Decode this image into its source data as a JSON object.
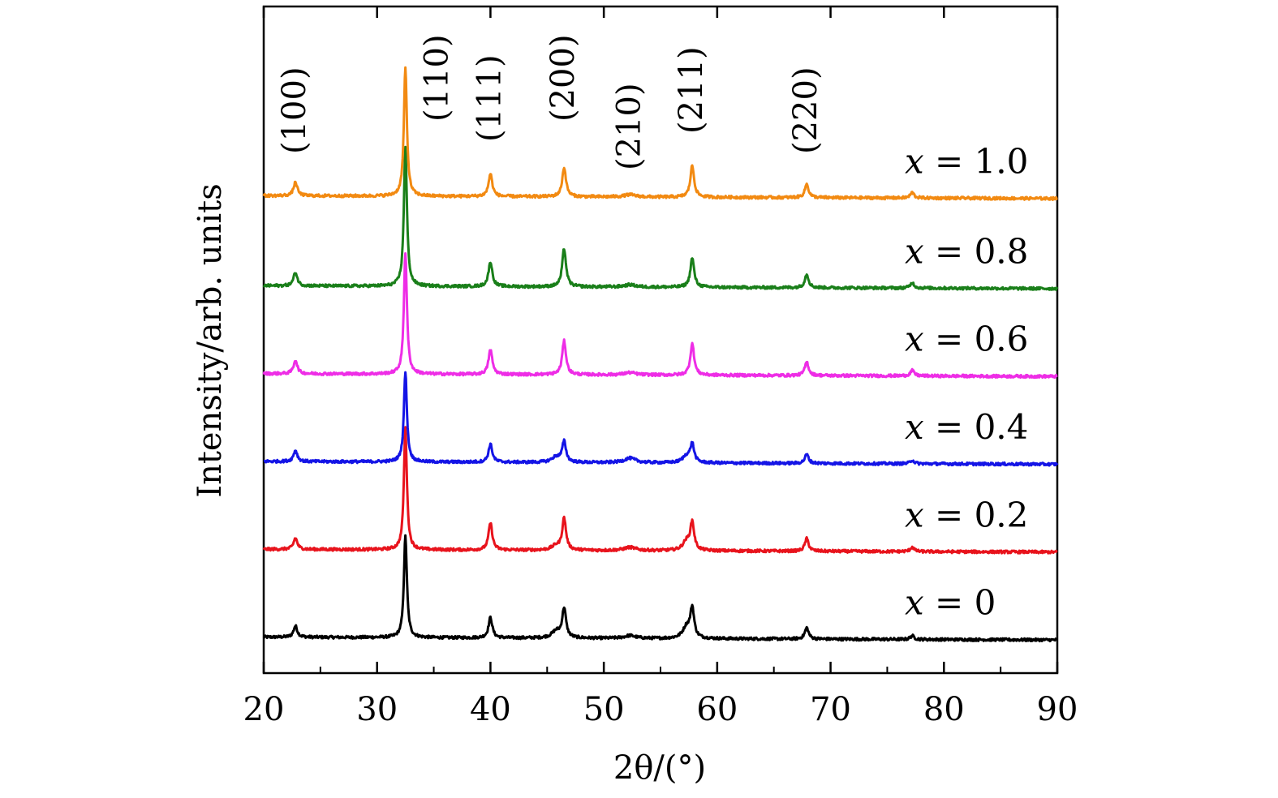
{
  "chart_data": {
    "type": "line",
    "xlabel": "2θ/(°)",
    "ylabel": "Intensity/arb. units",
    "xlim": [
      20,
      90
    ],
    "x_ticks": [
      "20",
      "30",
      "40",
      "50",
      "60",
      "70",
      "80",
      "90"
    ],
    "minor_x_step": 5,
    "y_ticks_visible": false,
    "grid": false,
    "peak_labels": [
      {
        "text": "(100)",
        "x": 22.8
      },
      {
        "text": "(110)",
        "x": 32.5
      },
      {
        "text": "(111)",
        "x": 40.0
      },
      {
        "text": "(200)",
        "x": 46.5
      },
      {
        "text": "(210)",
        "x": 52.3
      },
      {
        "text": "(211)",
        "x": 57.8
      },
      {
        "text": "(220)",
        "x": 67.9
      }
    ],
    "peak_shoulders": [
      45.8,
      57.3
    ],
    "series": [
      {
        "name": "x = 0",
        "label_text": [
          "x",
          " = 0"
        ],
        "color": "#000000",
        "baseline": 0.0,
        "peaks": {
          "22.8": 0.25,
          "32.5": 2.25,
          "40.0": 0.45,
          "46.5": 0.65,
          "52.3": 0.06,
          "57.8": 0.65,
          "67.9": 0.25,
          "77.2": 0.08,
          "45.8": 0.15,
          "57.3": 0.25
        }
      },
      {
        "name": "x = 0.2",
        "label_text": [
          "x",
          " = 0.2"
        ],
        "color": "#e8131c",
        "baseline": 1.95,
        "peaks": {
          "22.8": 0.25,
          "32.5": 2.7,
          "40.0": 0.6,
          "46.5": 0.7,
          "52.3": 0.07,
          "57.8": 0.6,
          "67.9": 0.28,
          "77.2": 0.1,
          "45.8": 0.1,
          "57.3": 0.2
        }
      },
      {
        "name": "x = 0.4",
        "label_text": [
          "x",
          " = 0.4"
        ],
        "color": "#1414e6",
        "baseline": 3.9,
        "peaks": {
          "22.8": 0.25,
          "32.5": 2.0,
          "40.0": 0.4,
          "46.5": 0.45,
          "52.3": 0.1,
          "57.8": 0.4,
          "67.9": 0.2,
          "77.2": 0.08,
          "45.8": 0.12,
          "57.3": 0.15
        }
      },
      {
        "name": "x = 0.6",
        "label_text": [
          "x",
          " = 0.6"
        ],
        "color": "#ee2de6",
        "baseline": 5.85,
        "peaks": {
          "22.8": 0.3,
          "32.5": 2.7,
          "40.0": 0.55,
          "46.5": 0.75,
          "52.3": 0.05,
          "57.8": 0.7,
          "67.9": 0.3,
          "77.2": 0.12
        }
      },
      {
        "name": "x = 0.8",
        "label_text": [
          "x",
          " = 0.8"
        ],
        "color": "#1a7f1a",
        "baseline": 7.8,
        "peaks": {
          "22.8": 0.3,
          "32.5": 3.1,
          "40.0": 0.55,
          "46.5": 0.85,
          "52.3": 0.05,
          "57.8": 0.65,
          "67.9": 0.3,
          "77.2": 0.12
        }
      },
      {
        "name": "x = 1.0",
        "label_text": [
          "x",
          " = 1.0"
        ],
        "color": "#f28a12",
        "baseline": 9.8,
        "peaks": {
          "22.8": 0.3,
          "32.5": 2.85,
          "40.0": 0.5,
          "46.5": 0.65,
          "52.3": 0.05,
          "57.8": 0.7,
          "67.9": 0.3,
          "77.2": 0.12
        }
      }
    ],
    "ylim": [
      -0.8,
      14.0
    ]
  }
}
